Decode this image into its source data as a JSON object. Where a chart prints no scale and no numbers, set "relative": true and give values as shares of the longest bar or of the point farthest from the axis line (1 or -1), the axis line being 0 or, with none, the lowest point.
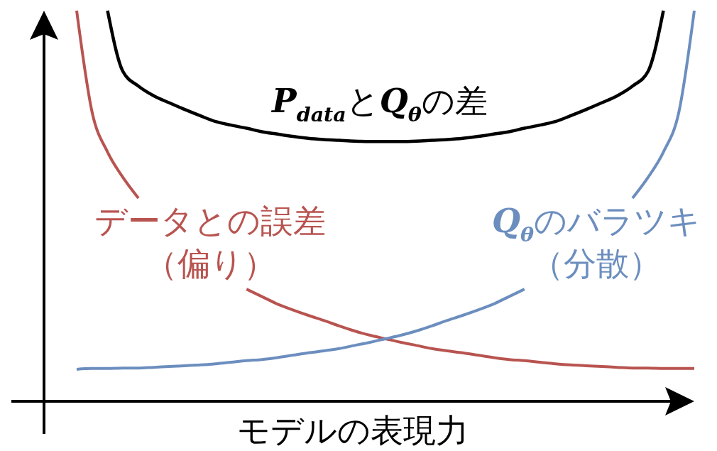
{
  "chart_data": {
    "type": "line",
    "relative": true,
    "xlabel": "モデルの表現力",
    "categories": [
      null,
      null,
      null,
      null,
      null,
      null,
      null,
      null,
      null,
      null,
      null,
      null,
      null,
      null,
      null,
      null,
      null,
      null,
      null,
      null,
      null,
      null,
      null,
      null,
      null,
      null,
      null,
      null,
      null,
      null,
      null,
      null,
      null,
      null,
      null,
      null,
      null,
      null,
      null,
      null,
      null
    ],
    "series": [
      {
        "name": "データとの誤差（偏り）",
        "color": "#b85450",
        "values": [
          1.0,
          0.74,
          0.638,
          0.573,
          0.52,
          null,
          null,
          null,
          null,
          null,
          null,
          0.287,
          0.268,
          0.249,
          0.234,
          0.22,
          0.207,
          0.193,
          0.18,
          0.169,
          0.16,
          0.151,
          0.143,
          0.135,
          0.129,
          0.124,
          0.118,
          0.112,
          0.107,
          0.104,
          0.1,
          0.096,
          0.093,
          0.091,
          0.089,
          0.087,
          0.085,
          0.085,
          0.084,
          0.084,
          0.084
        ]
      },
      {
        "name": "Q$_{θ}$のバラツキ（分散）",
        "color": "#6c8ebf",
        "values": [
          0.082,
          0.084,
          0.084,
          0.085,
          0.085,
          0.087,
          0.089,
          0.091,
          0.093,
          0.096,
          0.1,
          0.104,
          0.107,
          0.112,
          0.118,
          0.124,
          0.129,
          0.135,
          0.143,
          0.151,
          0.16,
          0.169,
          0.18,
          0.193,
          0.207,
          0.22,
          0.234,
          0.249,
          0.268,
          0.287,
          null,
          null,
          null,
          null,
          null,
          null,
          0.52,
          0.573,
          0.638,
          0.74,
          1.0
        ]
      },
      {
        "name": "P$_{data}$とQ$_{θ}$の差",
        "color": "#000000",
        "values": [
          null,
          null,
          1.0,
          0.844,
          0.807,
          0.782,
          0.764,
          0.747,
          0.731,
          0.716,
          0.707,
          0.699,
          0.69,
          0.684,
          0.678,
          0.673,
          0.67,
          0.668,
          0.666,
          0.665,
          0.665,
          0.665,
          0.666,
          0.668,
          0.67,
          0.673,
          0.678,
          0.684,
          0.69,
          0.699,
          0.707,
          0.716,
          0.731,
          0.747,
          0.764,
          0.782,
          0.807,
          0.844,
          1.0,
          null,
          null
        ]
      }
    ]
  }
}
